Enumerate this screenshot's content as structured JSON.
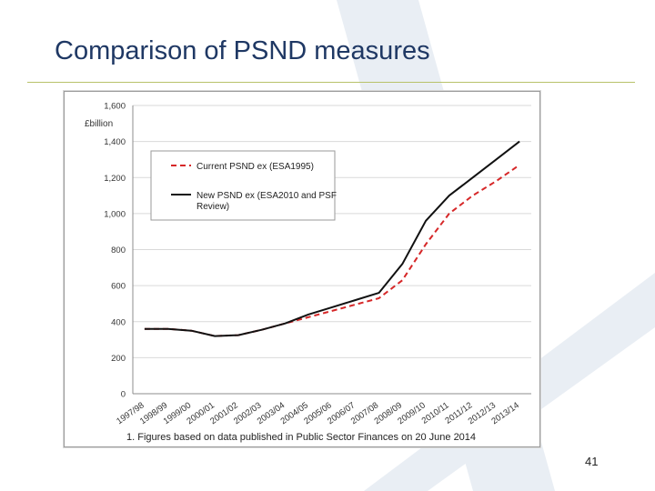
{
  "slide": {
    "title": "Comparison of PSND measures",
    "page_number": "41"
  },
  "colors": {
    "title": "#1f3864",
    "watermark": "#e9eef4",
    "new_series": "#111111",
    "current_series": "#d62728",
    "grid": "#d9d9d9"
  },
  "chart_data": {
    "type": "line",
    "title": "",
    "ylabel": "£billion",
    "xlabel": "",
    "ylim": [
      0,
      1600
    ],
    "ytick_step": 200,
    "grid": "horizontal",
    "legend_position": "top-left",
    "categories": [
      "1997/98",
      "1998/99",
      "1999/00",
      "2000/01",
      "2001/02",
      "2002/03",
      "2003/04",
      "2004/05",
      "2005/06",
      "2006/07",
      "2007/08",
      "2008/09",
      "2009/10",
      "2010/11",
      "2011/12",
      "2012/13",
      "2013/14"
    ],
    "series": [
      {
        "name": "Current PSND ex (ESA1995)",
        "style": "dashed",
        "color": "#d62728",
        "values": [
          360,
          360,
          350,
          320,
          325,
          355,
          390,
          425,
          460,
          495,
          530,
          630,
          830,
          1000,
          1100,
          1180,
          1270
        ]
      },
      {
        "name": "New PSND ex (ESA2010 and PSF Review)",
        "style": "solid",
        "color": "#111111",
        "values": [
          360,
          360,
          350,
          320,
          325,
          355,
          390,
          440,
          480,
          520,
          560,
          720,
          960,
          1100,
          1200,
          1300,
          1400
        ]
      }
    ],
    "footnote": "1. Figures based on data published in Public Sector Finances on 20 June 2014"
  }
}
